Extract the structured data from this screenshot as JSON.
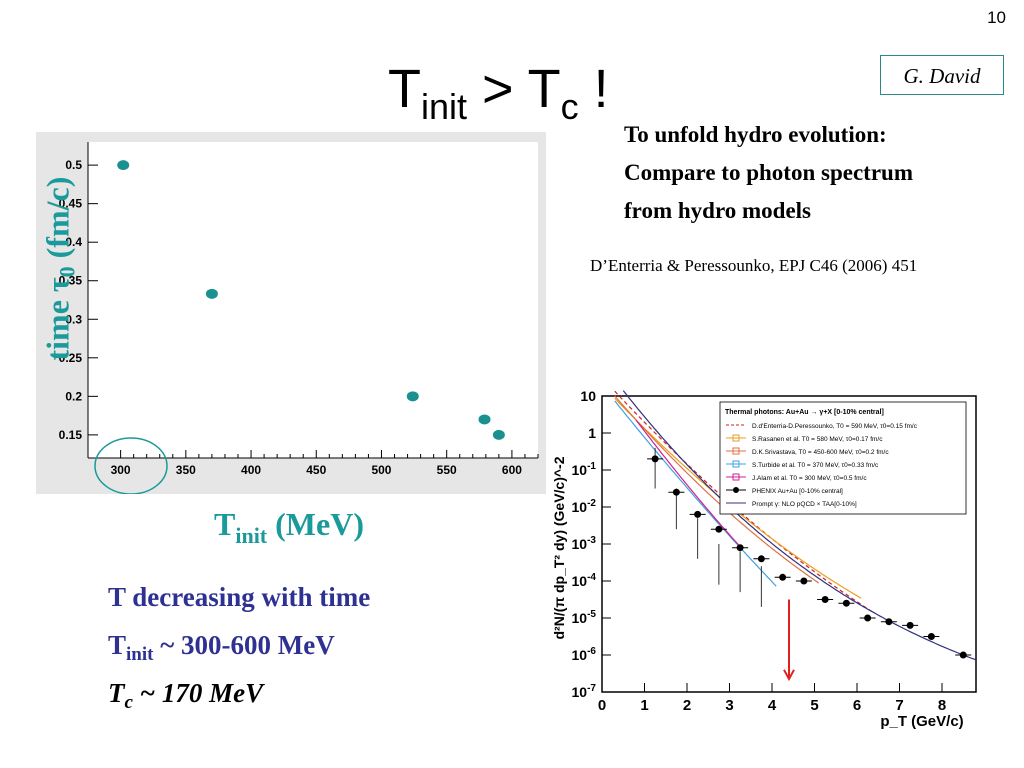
{
  "slide": {
    "page_number": "10",
    "author": "G. David",
    "title_T": "T",
    "title_init": "init",
    "title_gt": " > T",
    "title_c": "c",
    "title_excl": "  !",
    "note_lines": [
      "To unfold hydro evolution:",
      "Compare to photon spectrum",
      "from hydro models"
    ],
    "reference": "D’Enterria & Peressounko, EPJ C46 (2006) 451",
    "ylabel_main": "time τ",
    "ylabel_sub": "0",
    "ylabel_unit": " (fm/c)",
    "xlabel_main": "T",
    "xlabel_sub": "init",
    "xlabel_unit": " (MeV)",
    "bullet1": "T decreasing with time",
    "bullet2_T": "T",
    "bullet2_sub": "init",
    "bullet2_rest": " ~ 300-600 MeV",
    "bullet3_T": "T",
    "bullet3_sub": "c",
    "bullet3_rest": " ~ 170 MeV"
  },
  "chart_data": [
    {
      "type": "scatter",
      "title": "",
      "xlabel": "T_init (MeV)",
      "ylabel": "time τ0 (fm/c)",
      "xlim": [
        275,
        620
      ],
      "ylim": [
        0.12,
        0.53
      ],
      "xticks": [
        "300",
        "350",
        "400",
        "450",
        "500",
        "550",
        "600"
      ],
      "yticks": [
        "0.15",
        "0.2",
        "0.25",
        "0.3",
        "0.35",
        "0.4",
        "0.45",
        "0.5"
      ],
      "color": "#1a9090",
      "series": [
        {
          "x": [
            302,
            370,
            524,
            579,
            590
          ],
          "y": [
            0.5,
            0.333,
            0.2,
            0.17,
            0.15
          ]
        }
      ]
    },
    {
      "type": "scatter",
      "title": "",
      "xlabel": "p_T (GeV/c)",
      "ylabel": "d²N/(π dp_T² dy) (GeV/c)^-2",
      "xlim": [
        0,
        8.8
      ],
      "ylim_log10": [
        -7,
        1
      ],
      "log_y": true,
      "xticks": [
        "0",
        "1",
        "2",
        "3",
        "4",
        "5",
        "6",
        "7",
        "8"
      ],
      "yticks": [
        "10^-7",
        "10^-6",
        "10^-5",
        "10^-4",
        "10^-3",
        "10^-2",
        "10^-1",
        "1",
        "10"
      ],
      "legend_title": "Thermal photons: Au+Au → γ+X [0-10% central]",
      "legend": [
        {
          "label": "D.d'Enterria-D.Peressounko, T0 = 590 MeV, τ0=0.15 fm/c",
          "color": "#d02020",
          "style": "dash"
        },
        {
          "label": "S.Rasanen et al. T0 = 580 MeV, τ0=0.17 fm/c",
          "color": "#e8a020",
          "style": "cross"
        },
        {
          "label": "D.K.Srivastava, T0 = 450-600 MeV, τ0=0.2 fm/c",
          "color": "#e07040",
          "style": "square"
        },
        {
          "label": "S.Turbide et al. T0 = 370 MeV, τ0=0.33 fm/c",
          "color": "#40a0e0",
          "style": "triangle"
        },
        {
          "label": "J.Alam et al. T0 = 300 MeV, τ0=0.5 fm/c",
          "color": "#d02090",
          "style": "star"
        },
        {
          "label": "PHENIX Au+Au [0-10% central]",
          "color": "#000000",
          "style": "dot"
        },
        {
          "label": "Prompt γ: NLO pQCD × TAA[0-10%]",
          "color": "#303080",
          "style": "line"
        }
      ],
      "series": [
        {
          "name": "PHENIX Au+Au [0-10% central]",
          "x": [
            1.25,
            1.75,
            2.25,
            2.75,
            3.25,
            3.75,
            4.25,
            4.75,
            5.25,
            5.75,
            6.25,
            6.75,
            7.25,
            7.75,
            8.5
          ],
          "y_log10": [
            -0.7,
            -1.6,
            -2.2,
            -2.6,
            -3.1,
            -3.4,
            -3.9,
            -4.0,
            -4.5,
            -4.6,
            -5.0,
            -5.1,
            -5.2,
            -5.5,
            -6.0
          ]
        }
      ]
    }
  ]
}
